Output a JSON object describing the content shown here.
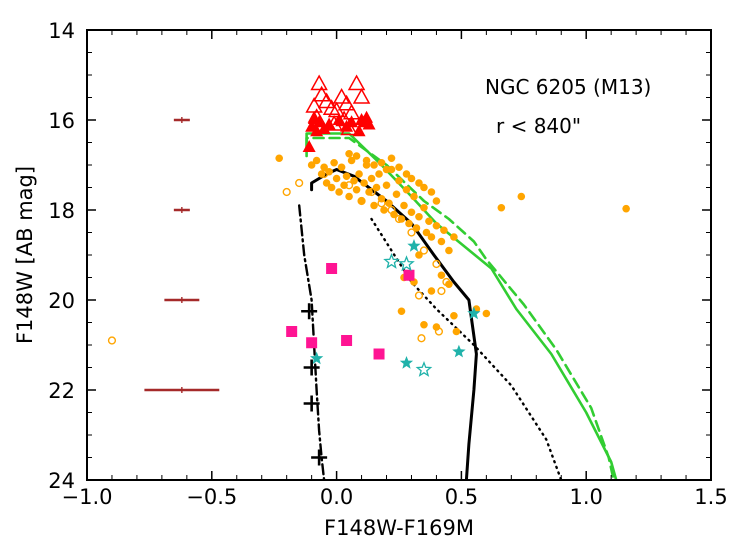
{
  "chart_data": {
    "type": "scatter",
    "subtype": "color-magnitude diagram",
    "xlabel": "F148W-F169M",
    "ylabel": "F148W [AB mag]",
    "xlim": [
      -1.0,
      1.5
    ],
    "ylim": [
      24,
      14
    ],
    "y_inverted": true,
    "xticks": [
      -1.0,
      -0.5,
      0.0,
      0.5,
      1.0,
      1.5
    ],
    "xtick_labels": [
      "−1.0",
      "−0.5",
      "0.0",
      "0.5",
      "1.0",
      "1.5"
    ],
    "yticks": [
      14,
      16,
      18,
      20,
      22,
      24
    ],
    "ytick_labels": [
      "14",
      "16",
      "18",
      "20",
      "22",
      "24"
    ],
    "annotations": [
      "NGC 6205 (M13)",
      "r < 840\""
    ],
    "colors": {
      "hb_filled": "#ffa500",
      "triangles": "#ff0000",
      "squares": "#ff1493",
      "stars": "#20b2aa",
      "errorbars": "#a52a2a",
      "model_green": "#32cd32",
      "isochrone": "#000000"
    },
    "series": [
      {
        "name": "orange-filled-circles",
        "marker": "circle-filled",
        "points": [
          [
            -0.23,
            16.85
          ],
          [
            -0.1,
            17.0
          ],
          [
            -0.08,
            16.9
          ],
          [
            -0.06,
            17.2
          ],
          [
            -0.05,
            17.05
          ],
          [
            -0.04,
            17.4
          ],
          [
            -0.03,
            17.15
          ],
          [
            -0.02,
            17.5
          ],
          [
            -0.01,
            16.95
          ],
          [
            0.0,
            17.3
          ],
          [
            0.01,
            17.6
          ],
          [
            0.02,
            17.05
          ],
          [
            0.03,
            17.45
          ],
          [
            0.04,
            17.25
          ],
          [
            0.05,
            17.7
          ],
          [
            0.06,
            16.9
          ],
          [
            0.07,
            17.35
          ],
          [
            0.08,
            17.55
          ],
          [
            0.09,
            17.2
          ],
          [
            0.1,
            17.8
          ],
          [
            0.11,
            17.4
          ],
          [
            0.12,
            17.0
          ],
          [
            0.13,
            17.6
          ],
          [
            0.14,
            17.3
          ],
          [
            0.15,
            17.9
          ],
          [
            0.16,
            17.5
          ],
          [
            0.17,
            17.2
          ],
          [
            0.18,
            17.75
          ],
          [
            0.19,
            18.0
          ],
          [
            0.2,
            17.45
          ],
          [
            0.21,
            17.85
          ],
          [
            0.22,
            17.1
          ],
          [
            0.23,
            18.1
          ],
          [
            0.24,
            17.65
          ],
          [
            0.25,
            17.35
          ],
          [
            0.26,
            18.2
          ],
          [
            0.27,
            17.9
          ],
          [
            0.28,
            17.55
          ],
          [
            0.29,
            18.3
          ],
          [
            0.3,
            18.05
          ],
          [
            0.31,
            17.7
          ],
          [
            0.32,
            18.4
          ],
          [
            0.33,
            18.15
          ],
          [
            0.35,
            17.95
          ],
          [
            0.36,
            18.5
          ],
          [
            0.37,
            18.25
          ],
          [
            0.38,
            18.6
          ],
          [
            0.4,
            18.35
          ],
          [
            0.42,
            18.7
          ],
          [
            0.43,
            18.45
          ],
          [
            0.45,
            18.9
          ],
          [
            0.47,
            18.6
          ],
          [
            0.05,
            16.75
          ],
          [
            0.08,
            16.8
          ],
          [
            0.12,
            16.9
          ],
          [
            0.15,
            17.0
          ],
          [
            0.18,
            16.95
          ],
          [
            0.2,
            17.1
          ],
          [
            0.22,
            16.85
          ],
          [
            0.25,
            17.05
          ],
          [
            0.28,
            17.2
          ],
          [
            0.3,
            17.3
          ],
          [
            0.33,
            17.4
          ],
          [
            0.35,
            17.5
          ],
          [
            0.38,
            17.6
          ],
          [
            0.4,
            17.8
          ],
          [
            0.27,
            19.5
          ],
          [
            0.31,
            19.6
          ],
          [
            0.33,
            19.0
          ],
          [
            0.38,
            19.8
          ],
          [
            0.42,
            19.45
          ],
          [
            0.45,
            19.65
          ],
          [
            0.4,
            20.6
          ],
          [
            0.56,
            20.2
          ],
          [
            0.6,
            20.3
          ],
          [
            0.74,
            17.7
          ],
          [
            0.66,
            17.95
          ],
          [
            1.16,
            17.97
          ],
          [
            0.26,
            20.25
          ],
          [
            0.35,
            20.55
          ],
          [
            0.47,
            20.35
          ],
          [
            0.48,
            20.7
          ]
        ]
      },
      {
        "name": "orange-open-circles",
        "marker": "circle-open",
        "points": [
          [
            -0.9,
            20.9
          ],
          [
            -0.2,
            17.6
          ],
          [
            -0.15,
            17.4
          ],
          [
            -0.05,
            17.2
          ],
          [
            0.05,
            17.45
          ],
          [
            0.1,
            17.8
          ],
          [
            0.14,
            17.6
          ],
          [
            0.18,
            17.85
          ],
          [
            0.22,
            18.0
          ],
          [
            0.25,
            18.2
          ],
          [
            0.3,
            18.5
          ],
          [
            0.35,
            18.9
          ],
          [
            0.4,
            19.2
          ],
          [
            0.42,
            19.8
          ],
          [
            0.44,
            19.6
          ],
          [
            0.33,
            19.9
          ],
          [
            0.41,
            20.7
          ],
          [
            0.34,
            20.85
          ]
        ]
      },
      {
        "name": "red-open-triangles",
        "marker": "triangle-open",
        "points": [
          [
            -0.07,
            15.2
          ],
          [
            -0.06,
            15.45
          ],
          [
            -0.04,
            15.6
          ],
          [
            -0.02,
            15.75
          ],
          [
            0.0,
            15.8
          ],
          [
            0.02,
            15.5
          ],
          [
            0.04,
            15.65
          ],
          [
            0.06,
            15.85
          ],
          [
            0.08,
            15.2
          ],
          [
            0.1,
            15.5
          ],
          [
            -0.08,
            15.95
          ],
          [
            -0.01,
            16.1
          ],
          [
            -0.09,
            15.7
          ],
          [
            0.03,
            16.0
          ],
          [
            0.05,
            16.2
          ]
        ]
      },
      {
        "name": "red-filled-triangles",
        "marker": "triangle-filled",
        "points": [
          [
            -0.08,
            16.25
          ],
          [
            -0.07,
            16.05
          ],
          [
            -0.05,
            16.2
          ],
          [
            -0.03,
            16.1
          ],
          [
            0.01,
            16.0
          ],
          [
            0.04,
            16.15
          ],
          [
            0.06,
            16.05
          ],
          [
            0.09,
            16.25
          ],
          [
            0.11,
            16.05
          ],
          [
            0.12,
            15.95
          ],
          [
            0.13,
            16.1
          ],
          [
            -0.11,
            16.6
          ],
          [
            -0.1,
            16.15
          ],
          [
            -0.09,
            15.95
          ],
          [
            0.1,
            16.0
          ]
        ]
      },
      {
        "name": "pink-squares",
        "marker": "square",
        "points": [
          [
            -0.02,
            19.3
          ],
          [
            -0.18,
            20.7
          ],
          [
            -0.1,
            20.95
          ],
          [
            0.04,
            20.9
          ],
          [
            0.17,
            21.2
          ],
          [
            0.29,
            19.45
          ]
        ]
      },
      {
        "name": "teal-filled-stars",
        "marker": "star-filled",
        "points": [
          [
            0.31,
            18.8
          ],
          [
            0.55,
            20.3
          ],
          [
            -0.08,
            21.3
          ],
          [
            0.28,
            21.4
          ],
          [
            0.49,
            21.15
          ]
        ]
      },
      {
        "name": "teal-open-stars",
        "marker": "star-open",
        "points": [
          [
            0.22,
            19.15
          ],
          [
            0.28,
            19.2
          ],
          [
            0.35,
            21.55
          ]
        ]
      },
      {
        "name": "error-bars",
        "marker": "errorbar",
        "points": [
          [
            -0.62,
            16.0,
            0.02
          ],
          [
            -0.62,
            18.0,
            0.03
          ],
          [
            -0.62,
            20.0,
            0.07
          ],
          [
            -0.62,
            22.0,
            0.15
          ]
        ]
      },
      {
        "name": "green-model-solid",
        "style": "solid",
        "points": [
          [
            -0.12,
            16.8
          ],
          [
            -0.12,
            16.3
          ],
          [
            0.05,
            16.3
          ],
          [
            0.18,
            17.0
          ],
          [
            0.3,
            17.7
          ],
          [
            0.4,
            18.3
          ],
          [
            0.51,
            18.8
          ],
          [
            0.62,
            19.3
          ],
          [
            0.72,
            20.2
          ],
          [
            0.86,
            21.2
          ],
          [
            1.0,
            22.5
          ],
          [
            1.1,
            23.6
          ],
          [
            1.12,
            24.0
          ]
        ]
      },
      {
        "name": "green-model-dashed",
        "style": "dashed",
        "points": [
          [
            -0.12,
            16.6
          ],
          [
            -0.12,
            16.4
          ],
          [
            0.05,
            16.4
          ],
          [
            0.2,
            17.0
          ],
          [
            0.35,
            17.8
          ],
          [
            0.45,
            18.2
          ],
          [
            0.55,
            18.7
          ],
          [
            0.6,
            19.1
          ],
          [
            0.75,
            20.1
          ],
          [
            0.88,
            21.1
          ],
          [
            1.02,
            22.4
          ],
          [
            1.09,
            23.5
          ],
          [
            1.11,
            24.0
          ]
        ]
      },
      {
        "name": "black-isochrone",
        "style": "solid",
        "points": [
          [
            -0.1,
            17.55
          ],
          [
            -0.1,
            17.4
          ],
          [
            -0.04,
            17.2
          ],
          [
            0.0,
            17.1
          ],
          [
            0.07,
            17.25
          ],
          [
            0.2,
            17.8
          ],
          [
            0.3,
            18.3
          ],
          [
            0.39,
            19.0
          ],
          [
            0.47,
            19.6
          ],
          [
            0.53,
            20.0
          ],
          [
            0.56,
            21.2
          ],
          [
            0.55,
            22.0
          ],
          [
            0.53,
            23.2
          ],
          [
            0.52,
            24.0
          ]
        ]
      },
      {
        "name": "black-dotted",
        "style": "dotted",
        "points": [
          [
            0.14,
            18.2
          ],
          [
            0.22,
            18.9
          ],
          [
            0.3,
            19.6
          ],
          [
            0.4,
            20.2
          ],
          [
            0.55,
            21.0
          ],
          [
            0.7,
            21.9
          ],
          [
            0.84,
            23.1
          ],
          [
            0.9,
            24.0
          ]
        ]
      },
      {
        "name": "black-dashdot",
        "style": "dashdot",
        "points": [
          [
            -0.15,
            17.9
          ],
          [
            -0.13,
            19.0
          ],
          [
            -0.1,
            20.0
          ],
          [
            -0.09,
            21.0
          ],
          [
            -0.08,
            22.0
          ],
          [
            -0.07,
            22.9
          ],
          [
            -0.06,
            23.5
          ],
          [
            -0.05,
            24.0
          ]
        ]
      },
      {
        "name": "black-plus-markers",
        "marker": "plus",
        "points": [
          [
            -0.11,
            20.25
          ],
          [
            -0.1,
            21.5
          ],
          [
            -0.1,
            22.3
          ],
          [
            -0.07,
            23.5
          ]
        ]
      }
    ]
  }
}
